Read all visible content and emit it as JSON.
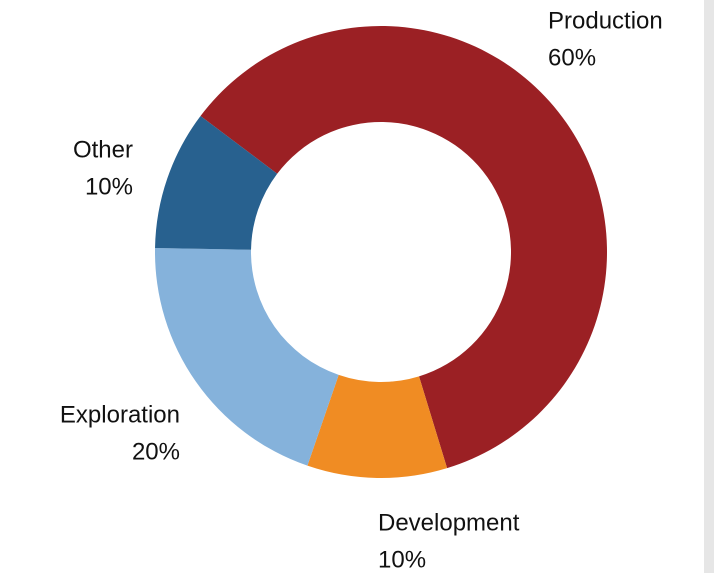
{
  "chart_data": {
    "type": "donut",
    "categories": [
      "Production",
      "Development",
      "Exploration",
      "Other"
    ],
    "values": [
      60,
      10,
      20,
      10
    ],
    "value_labels": [
      "60%",
      "10%",
      "20%",
      "10%"
    ],
    "colors": [
      "#9b2024",
      "#f08c23",
      "#85b2db",
      "#28618f"
    ]
  }
}
